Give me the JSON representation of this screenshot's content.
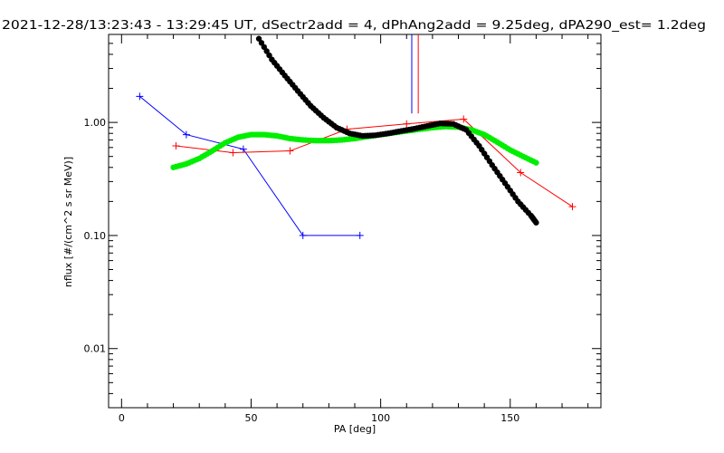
{
  "chart_data": {
    "type": "line",
    "title": "2021-12-28/13:23:43 - 13:29:45 UT, dSectr2add = 4, dPhAng2add = 9.25deg, dPA290_est=    1.2deg",
    "xlabel": "PA [deg]",
    "ylabel": "nflux [#/(cm^2 s sr MeV)]",
    "xlim": [
      -5,
      185
    ],
    "ylim": [
      0.003,
      6.0
    ],
    "y_scale": "log",
    "x_ticks": [
      0,
      50,
      100,
      150
    ],
    "x_tick_labels": [
      "0",
      "50",
      "100",
      "150"
    ],
    "y_ticks": [
      0.01,
      0.1,
      1.0
    ],
    "y_tick_labels": [
      "0.01",
      "0.10",
      "1.00"
    ],
    "grid": false,
    "series": [
      {
        "color": "#0000ff",
        "style": "line-plus",
        "x": [
          7,
          25,
          47,
          70,
          92
        ],
        "y": [
          1.7,
          0.78,
          0.58,
          0.1,
          0.1
        ]
      },
      {
        "color": "#ff0000",
        "style": "line-plus",
        "x": [
          21,
          43,
          65,
          87,
          110,
          132,
          154,
          174
        ],
        "y": [
          0.62,
          0.54,
          0.56,
          0.87,
          0.97,
          1.07,
          0.36,
          0.18
        ]
      },
      {
        "color": "#00ee00",
        "style": "dots",
        "x": [
          20,
          25,
          30,
          35,
          40,
          45,
          50,
          55,
          60,
          65,
          70,
          75,
          80,
          85,
          90,
          95,
          100,
          105,
          110,
          115,
          120,
          125,
          130,
          135,
          140,
          145,
          150,
          155,
          160
        ],
        "y": [
          0.4,
          0.43,
          0.48,
          0.56,
          0.66,
          0.74,
          0.78,
          0.78,
          0.76,
          0.72,
          0.7,
          0.69,
          0.69,
          0.7,
          0.72,
          0.75,
          0.78,
          0.81,
          0.84,
          0.87,
          0.9,
          0.92,
          0.91,
          0.86,
          0.78,
          0.67,
          0.57,
          0.5,
          0.44
        ]
      },
      {
        "color": "#000000",
        "style": "dots",
        "x": [
          53,
          58,
          63,
          68,
          73,
          78,
          83,
          88,
          93,
          98,
          103,
          108,
          113,
          118,
          123,
          128,
          133,
          138,
          143,
          148,
          153,
          158,
          160
        ],
        "y": [
          5.5,
          3.6,
          2.6,
          1.9,
          1.4,
          1.1,
          0.9,
          0.8,
          0.76,
          0.77,
          0.8,
          0.84,
          0.88,
          0.93,
          0.98,
          0.97,
          0.86,
          0.62,
          0.42,
          0.29,
          0.2,
          0.15,
          0.13
        ]
      },
      {
        "color": "#0000ff",
        "style": "vline",
        "x": [
          112
        ],
        "y_range": [
          1.2,
          6.0
        ]
      },
      {
        "color": "#ff0000",
        "style": "vline",
        "x": [
          114.5
        ],
        "y_range": [
          1.2,
          6.0
        ]
      }
    ]
  }
}
